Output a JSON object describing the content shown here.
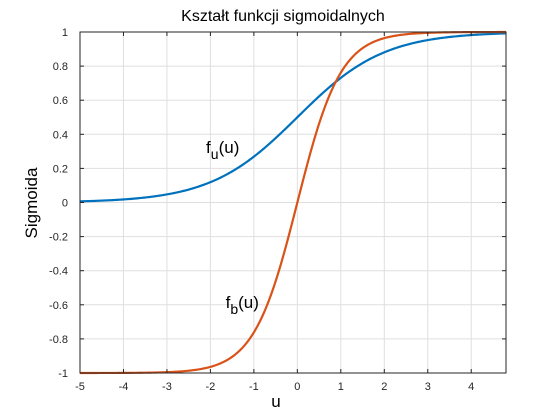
{
  "chart_data": {
    "type": "line",
    "title": "Kształt funkcji sigmoidalnych",
    "xlabel": "u",
    "ylabel": "Sigmoida",
    "xlim": [
      -5,
      4.8
    ],
    "ylim": [
      -1,
      1
    ],
    "xticks": [
      -5,
      -4,
      -3,
      -2,
      -1,
      0,
      1,
      2,
      3,
      4
    ],
    "yticks": [
      -1,
      -0.8,
      -0.6,
      -0.4,
      -0.2,
      0,
      0.2,
      0.4,
      0.6,
      0.8,
      1
    ],
    "grid": true,
    "series": [
      {
        "name": "f_u(u)",
        "color": "#0072BD",
        "x": [
          -5,
          -4.5,
          -4,
          -3.5,
          -3,
          -2.5,
          -2,
          -1.5,
          -1,
          -0.5,
          0,
          0.5,
          1,
          1.5,
          2,
          2.5,
          3,
          3.5,
          4,
          4.5,
          4.8
        ],
        "y": [
          0.007,
          0.011,
          0.018,
          0.029,
          0.047,
          0.076,
          0.119,
          0.182,
          0.269,
          0.378,
          0.5,
          0.622,
          0.731,
          0.818,
          0.881,
          0.924,
          0.953,
          0.971,
          0.982,
          0.989,
          0.992
        ]
      },
      {
        "name": "f_b(u)",
        "color": "#D95319",
        "x": [
          -5,
          -4.5,
          -4,
          -3.5,
          -3,
          -2.5,
          -2,
          -1.5,
          -1,
          -0.5,
          0,
          0.5,
          1,
          1.5,
          2,
          2.5,
          3,
          3.5,
          4,
          4.5,
          4.8
        ],
        "y": [
          -1.0,
          -1.0,
          -0.999,
          -0.998,
          -0.995,
          -0.987,
          -0.964,
          -0.905,
          -0.762,
          -0.462,
          0.0,
          0.462,
          0.762,
          0.905,
          0.964,
          0.987,
          0.995,
          0.998,
          0.999,
          1.0,
          1.0
        ]
      }
    ],
    "annotations": [
      {
        "main": "f",
        "sub": "u",
        "rest": "(u)",
        "x": -2.1,
        "y": 0.29,
        "color": "#000000"
      },
      {
        "main": "f",
        "sub": "b",
        "rest": "(u)",
        "x": -1.65,
        "y": -0.62,
        "color": "#000000"
      }
    ]
  }
}
